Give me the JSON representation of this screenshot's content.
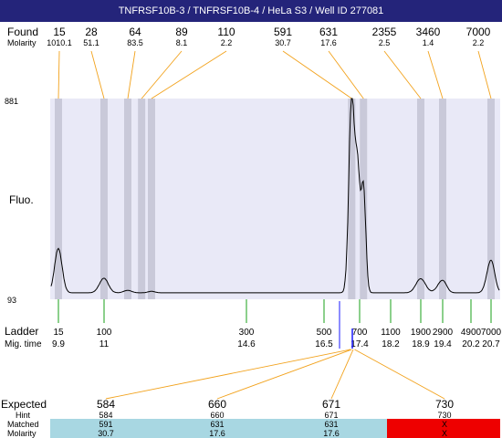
{
  "title": "TNFRSF10B-3 / TNFRSF10B-4 / HeLa S3 / Well ID 277081",
  "colors": {
    "title_bg": "#24247a",
    "plot_bg": "#e9e9f7",
    "band": "#c9c9d9",
    "trace": "#000000",
    "found_line": "#f2a21c",
    "ladder_line": "#18a018",
    "marker": "#1a1aff",
    "hint_bar": "#a8d7e2",
    "missing_bar": "#ee0000"
  },
  "labels": {
    "found": "Found",
    "molarity": "Molarity",
    "fluo": "Fluo.",
    "ladder": "Ladder",
    "mig_time": "Mig. time",
    "expected": "Expected",
    "hint": "Hint",
    "matched": "Matched",
    "molarity2": "Molarity"
  },
  "chart_data": {
    "type": "line",
    "y_ticks": [
      "881",
      "93"
    ],
    "ylim": [
      93,
      881
    ],
    "found_peaks": [
      {
        "size": "15",
        "molarity": "1010.1",
        "time": 9.9
      },
      {
        "size": "28",
        "molarity": "51.1",
        "time": 11.0
      },
      {
        "size": "64",
        "molarity": "83.5",
        "time": 11.6
      },
      {
        "size": "89",
        "molarity": "8.1",
        "time": 11.95
      },
      {
        "size": "110",
        "molarity": "2.2",
        "time": 12.2
      },
      {
        "size": "591",
        "molarity": "30.7",
        "time": 17.2
      },
      {
        "size": "631",
        "molarity": "17.6",
        "time": 17.5
      },
      {
        "size": "2355",
        "molarity": "2.5",
        "time": 18.9
      },
      {
        "size": "3460",
        "molarity": "1.4",
        "time": 19.4
      },
      {
        "size": "7000",
        "molarity": "2.2",
        "time": 20.7
      }
    ],
    "ladder": [
      {
        "size": "15",
        "time": "9.9"
      },
      {
        "size": "100",
        "time": "11"
      },
      {
        "size": "300",
        "time": "14.6"
      },
      {
        "size": "500",
        "time": "16.5"
      },
      {
        "size": "700",
        "time": "17.4"
      },
      {
        "size": "1100",
        "time": "18.2"
      },
      {
        "size": "1900",
        "time": "18.9"
      },
      {
        "size": "2900",
        "time": "19.4"
      },
      {
        "size": "4900",
        "time": "20.2"
      },
      {
        "size": "7000",
        "time": "20.7"
      }
    ],
    "trace_peaks": [
      {
        "time": 9.9,
        "height": 272
      },
      {
        "time": 11.0,
        "height": 152
      },
      {
        "time": 11.6,
        "height": 103
      },
      {
        "time": 12.2,
        "height": 99
      },
      {
        "time": 17.2,
        "height": 881
      },
      {
        "time": 17.35,
        "height": 560
      },
      {
        "time": 17.5,
        "height": 520
      },
      {
        "time": 18.9,
        "height": 150
      },
      {
        "time": 19.4,
        "height": 144
      },
      {
        "time": 20.7,
        "height": 225
      }
    ],
    "expected": [
      {
        "expected": "584",
        "hint": "584",
        "matched": "591",
        "molarity": "30.7",
        "found": true
      },
      {
        "expected": "660",
        "hint": "660",
        "matched": "631",
        "molarity": "17.6",
        "found": true
      },
      {
        "expected": "671",
        "hint": "671",
        "matched": "631",
        "molarity": "17.6",
        "found": true
      },
      {
        "expected": "730",
        "hint": "730",
        "matched": "X",
        "molarity": "X",
        "found": false
      }
    ]
  }
}
